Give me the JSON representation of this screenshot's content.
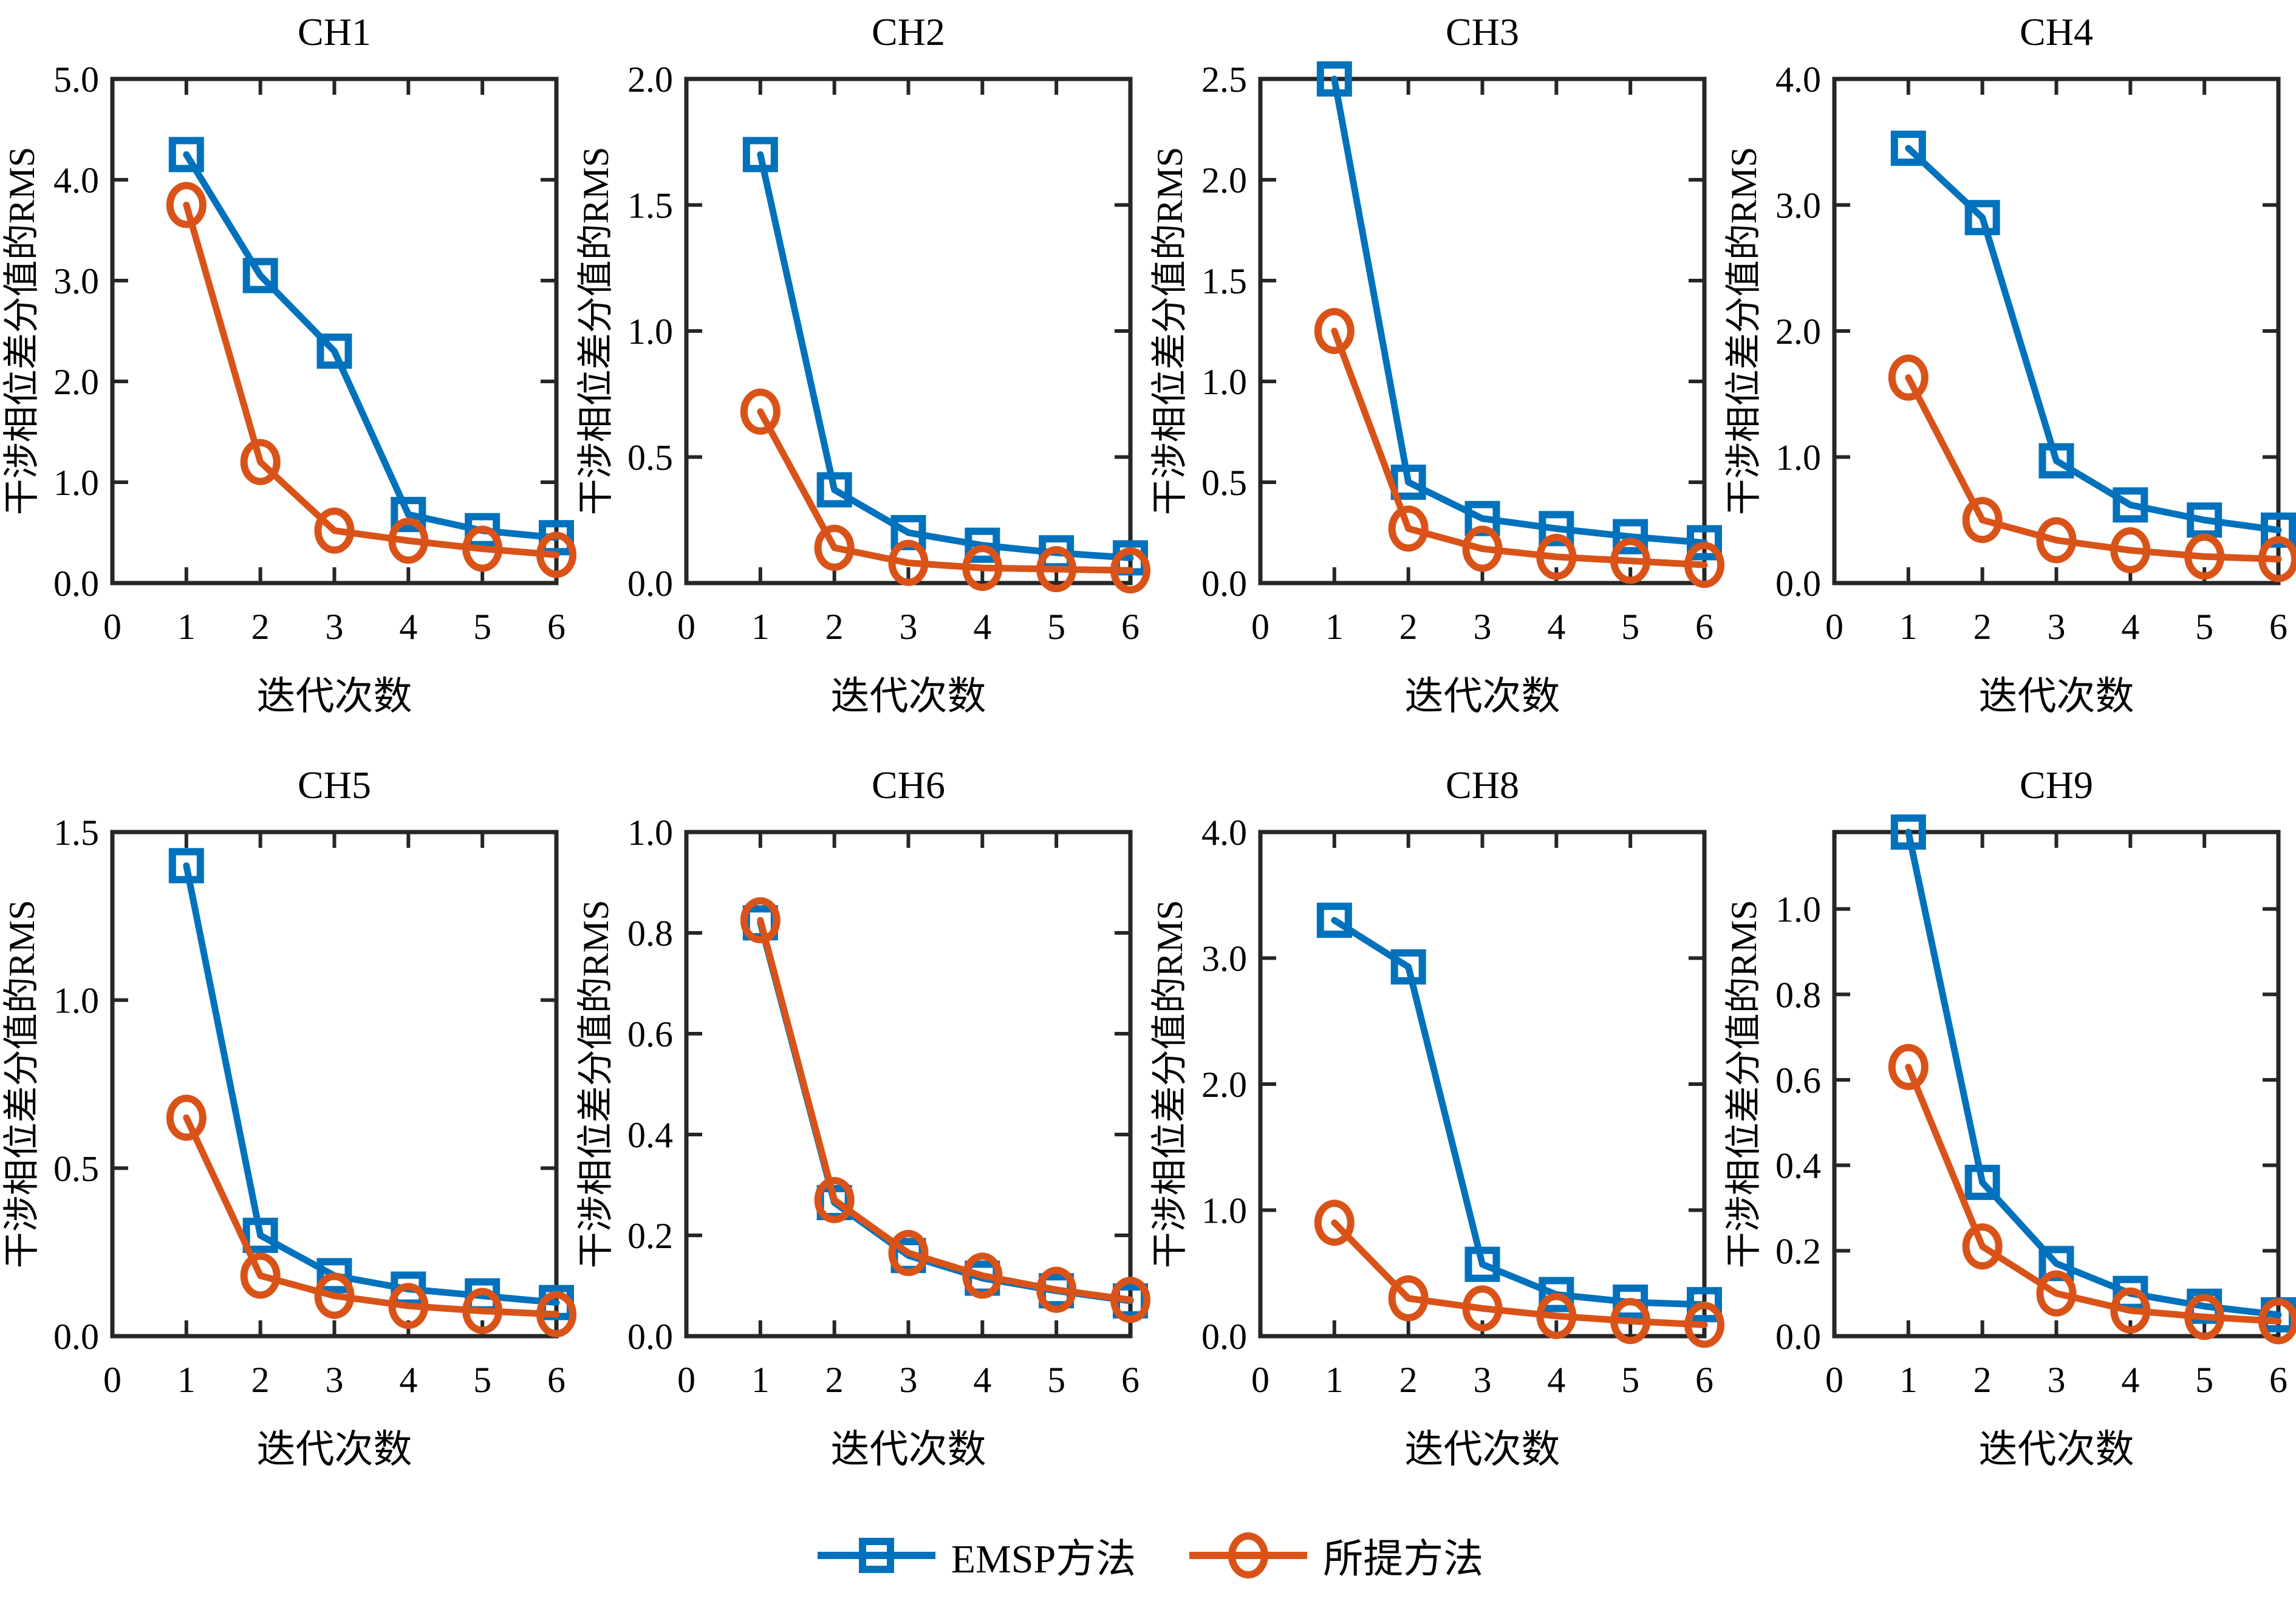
{
  "figure": {
    "background": "#ffffff",
    "axes_color": "#262626",
    "text_color": "#000000"
  },
  "legend": {
    "items": [
      {
        "label": "EMSP方法",
        "marker": "square",
        "color": "#0072BD"
      },
      {
        "label": "所提方法",
        "marker": "circle",
        "color": "#D95319"
      }
    ]
  },
  "chart_data": [
    {
      "type": "line",
      "title": "CH1",
      "xlabel": "迭代次数",
      "ylabel": "干涉相位差分值的RMS",
      "x": [
        1,
        2,
        3,
        4,
        5,
        6
      ],
      "xlim": [
        0,
        6
      ],
      "xticks": [
        0,
        1,
        2,
        3,
        4,
        5,
        6
      ],
      "ylim": [
        0,
        5.0
      ],
      "yticks": [
        0.0,
        1.0,
        2.0,
        3.0,
        4.0,
        5.0
      ],
      "grid": false,
      "series": [
        {
          "name": "EMSP方法",
          "marker": "square",
          "color": "#0072BD",
          "values": [
            4.25,
            3.05,
            2.3,
            0.68,
            0.52,
            0.45
          ]
        },
        {
          "name": "所提方法",
          "marker": "circle",
          "color": "#D95319",
          "values": [
            3.75,
            1.2,
            0.52,
            0.42,
            0.34,
            0.28
          ]
        }
      ]
    },
    {
      "type": "line",
      "title": "CH2",
      "xlabel": "迭代次数",
      "ylabel": "干涉相位差分值的RMS",
      "x": [
        1,
        2,
        3,
        4,
        5,
        6
      ],
      "xlim": [
        0,
        6
      ],
      "xticks": [
        0,
        1,
        2,
        3,
        4,
        5,
        6
      ],
      "ylim": [
        0,
        2.0
      ],
      "yticks": [
        0.0,
        0.5,
        1.0,
        1.5,
        2.0
      ],
      "grid": false,
      "series": [
        {
          "name": "EMSP方法",
          "marker": "square",
          "color": "#0072BD",
          "values": [
            1.7,
            0.37,
            0.2,
            0.15,
            0.12,
            0.1
          ]
        },
        {
          "name": "所提方法",
          "marker": "circle",
          "color": "#D95319",
          "values": [
            0.68,
            0.14,
            0.08,
            0.06,
            0.055,
            0.05
          ]
        }
      ]
    },
    {
      "type": "line",
      "title": "CH3",
      "xlabel": "迭代次数",
      "ylabel": "干涉相位差分值的RMS",
      "x": [
        1,
        2,
        3,
        4,
        5,
        6
      ],
      "xlim": [
        0,
        6
      ],
      "xticks": [
        0,
        1,
        2,
        3,
        4,
        5,
        6
      ],
      "ylim": [
        0,
        2.5
      ],
      "yticks": [
        0.0,
        0.5,
        1.0,
        1.5,
        2.0,
        2.5
      ],
      "grid": false,
      "series": [
        {
          "name": "EMSP方法",
          "marker": "square",
          "color": "#0072BD",
          "values": [
            2.5,
            0.5,
            0.32,
            0.27,
            0.23,
            0.2
          ]
        },
        {
          "name": "所提方法",
          "marker": "circle",
          "color": "#D95319",
          "values": [
            1.25,
            0.27,
            0.17,
            0.13,
            0.11,
            0.09
          ]
        }
      ]
    },
    {
      "type": "line",
      "title": "CH4",
      "xlabel": "迭代次数",
      "ylabel": "干涉相位差分值的RMS",
      "x": [
        1,
        2,
        3,
        4,
        5,
        6
      ],
      "xlim": [
        0,
        6
      ],
      "xticks": [
        0,
        1,
        2,
        3,
        4,
        5,
        6
      ],
      "ylim": [
        0,
        4.0
      ],
      "yticks": [
        0.0,
        1.0,
        2.0,
        3.0,
        4.0
      ],
      "grid": false,
      "series": [
        {
          "name": "EMSP方法",
          "marker": "square",
          "color": "#0072BD",
          "values": [
            3.45,
            2.9,
            0.97,
            0.62,
            0.5,
            0.42
          ]
        },
        {
          "name": "所提方法",
          "marker": "circle",
          "color": "#D95319",
          "values": [
            1.63,
            0.5,
            0.34,
            0.26,
            0.21,
            0.19
          ]
        }
      ]
    },
    {
      "type": "line",
      "title": "CH5",
      "xlabel": "迭代次数",
      "ylabel": "干涉相位差分值的RMS",
      "x": [
        1,
        2,
        3,
        4,
        5,
        6
      ],
      "xlim": [
        0,
        6
      ],
      "xticks": [
        0,
        1,
        2,
        3,
        4,
        5,
        6
      ],
      "ylim": [
        0,
        1.5
      ],
      "yticks": [
        0.0,
        0.5,
        1.0,
        1.5
      ],
      "grid": false,
      "series": [
        {
          "name": "EMSP方法",
          "marker": "square",
          "color": "#0072BD",
          "values": [
            1.4,
            0.3,
            0.18,
            0.14,
            0.12,
            0.1
          ]
        },
        {
          "name": "所提方法",
          "marker": "circle",
          "color": "#D95319",
          "values": [
            0.65,
            0.18,
            0.12,
            0.09,
            0.075,
            0.065
          ]
        }
      ]
    },
    {
      "type": "line",
      "title": "CH6",
      "xlabel": "迭代次数",
      "ylabel": "干涉相位差分值的RMS",
      "x": [
        1,
        2,
        3,
        4,
        5,
        6
      ],
      "xlim": [
        0,
        6
      ],
      "xticks": [
        0,
        1,
        2,
        3,
        4,
        5,
        6
      ],
      "ylim": [
        0,
        1.0
      ],
      "yticks": [
        0.0,
        0.2,
        0.4,
        0.6,
        0.8,
        1.0
      ],
      "grid": false,
      "series": [
        {
          "name": "EMSP方法",
          "marker": "square",
          "color": "#0072BD",
          "values": [
            0.82,
            0.265,
            0.16,
            0.115,
            0.09,
            0.07
          ]
        },
        {
          "name": "所提方法",
          "marker": "circle",
          "color": "#D95319",
          "values": [
            0.825,
            0.27,
            0.165,
            0.12,
            0.092,
            0.072
          ]
        }
      ]
    },
    {
      "type": "line",
      "title": "CH8",
      "xlabel": "迭代次数",
      "ylabel": "干涉相位差分值的RMS",
      "x": [
        1,
        2,
        3,
        4,
        5,
        6
      ],
      "xlim": [
        0,
        6
      ],
      "xticks": [
        0,
        1,
        2,
        3,
        4,
        5,
        6
      ],
      "ylim": [
        0,
        4.0
      ],
      "yticks": [
        0.0,
        1.0,
        2.0,
        3.0,
        4.0
      ],
      "grid": false,
      "series": [
        {
          "name": "EMSP方法",
          "marker": "square",
          "color": "#0072BD",
          "values": [
            3.3,
            2.93,
            0.57,
            0.33,
            0.27,
            0.25
          ]
        },
        {
          "name": "所提方法",
          "marker": "circle",
          "color": "#D95319",
          "values": [
            0.9,
            0.3,
            0.22,
            0.16,
            0.12,
            0.09
          ]
        }
      ]
    },
    {
      "type": "line",
      "title": "CH9",
      "xlabel": "迭代次数",
      "ylabel": "干涉相位差分值的RMS",
      "x": [
        1,
        2,
        3,
        4,
        5,
        6
      ],
      "xlim": [
        0,
        6
      ],
      "xticks": [
        0,
        1,
        2,
        3,
        4,
        5,
        6
      ],
      "ylim": [
        0,
        1.18
      ],
      "yticks": [
        0.0,
        0.2,
        0.4,
        0.6,
        0.8,
        1.0
      ],
      "grid": false,
      "series": [
        {
          "name": "EMSP方法",
          "marker": "square",
          "color": "#0072BD",
          "values": [
            1.18,
            0.36,
            0.17,
            0.1,
            0.07,
            0.05
          ]
        },
        {
          "name": "所提方法",
          "marker": "circle",
          "color": "#D95319",
          "values": [
            0.63,
            0.21,
            0.1,
            0.06,
            0.045,
            0.035
          ]
        }
      ]
    }
  ]
}
